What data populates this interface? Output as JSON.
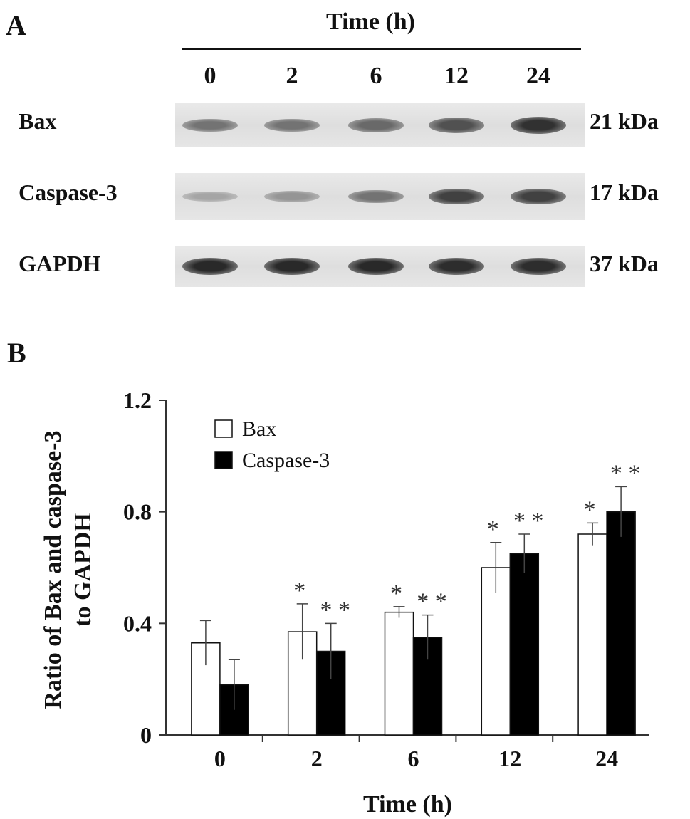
{
  "panelA": {
    "letter": "A",
    "header": "Time (h)",
    "lanes": [
      "0",
      "2",
      "6",
      "12",
      "24"
    ],
    "blots": [
      {
        "protein": "Bax",
        "size": "21 kDa",
        "intensity": [
          0.55,
          0.55,
          0.6,
          0.72,
          0.88
        ]
      },
      {
        "protein": "Caspase-3",
        "size": "17 kDa",
        "intensity": [
          0.3,
          0.38,
          0.55,
          0.8,
          0.8
        ]
      },
      {
        "protein": "GAPDH",
        "size": "37 kDa",
        "intensity": [
          0.92,
          0.92,
          0.92,
          0.9,
          0.9
        ]
      }
    ]
  },
  "panelB": {
    "letter": "B"
  },
  "chart_data": {
    "type": "bar",
    "categories": [
      "0",
      "2",
      "6",
      "12",
      "24"
    ],
    "series": [
      {
        "name": "Bax",
        "color": "#ffffff",
        "values": [
          0.33,
          0.37,
          0.44,
          0.6,
          0.72
        ],
        "errors": [
          0.08,
          0.1,
          0.02,
          0.09,
          0.04
        ],
        "significance": [
          "",
          "*",
          "*",
          "*",
          "*"
        ]
      },
      {
        "name": "Caspase-3",
        "color": "#000000",
        "values": [
          0.18,
          0.3,
          0.35,
          0.65,
          0.8
        ],
        "errors": [
          0.09,
          0.1,
          0.08,
          0.07,
          0.09
        ],
        "significance": [
          "",
          "**",
          "**",
          "**",
          "**"
        ]
      }
    ],
    "xlabel": "Time (h)",
    "ylabel_lines": [
      "Ratio of Bax and caspase-3",
      "to GAPDH"
    ],
    "ylim": [
      0,
      1.2
    ],
    "yticks": [
      0,
      0.4,
      0.8,
      1.2
    ],
    "ytick_labels": [
      "0",
      "0.4",
      "0.8",
      "1.2"
    ],
    "legend_position": "top-left",
    "grid": false
  }
}
